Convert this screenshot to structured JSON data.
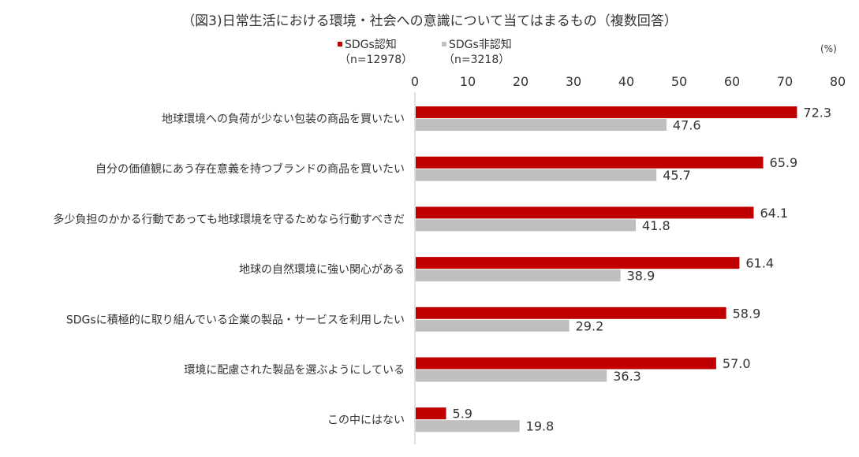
{
  "chart_data": {
    "type": "bar",
    "orientation": "horizontal",
    "title": "（図3)日常生活における環境・社会への意識について当てはまるもの（複数回答）",
    "unit": "(%)",
    "xlim": [
      0,
      80
    ],
    "ticks": [
      0,
      10,
      20,
      30,
      40,
      50,
      60,
      70,
      80
    ],
    "grid": false,
    "legend_position": "top",
    "categories": [
      "地球環境への負荷が少ない包装の商品を買いたい",
      "自分の価値観にあう存在意義を持つブランドの商品を買いたい",
      "多少負担のかかる行動であっても地球環境を守るためなら行動すべきだ",
      "地球の自然環境に強い関心がある",
      "SDGsに積極的に取り組んでいる企業の製品・サービスを利用したい",
      "環境に配慮された製品を選ぶようにしている",
      "この中にはない"
    ],
    "series": [
      {
        "name": "SDGs認知",
        "sample": "（n=12978）",
        "color": "#c00000",
        "values": [
          72.3,
          65.9,
          64.1,
          61.4,
          58.9,
          57.0,
          5.9
        ],
        "labels": [
          "72.3",
          "65.9",
          "64.1",
          "61.4",
          "58.9",
          "57.0",
          "5.9"
        ]
      },
      {
        "name": "SDGs非認知",
        "sample": "（n=3218）",
        "color": "#bfbfbf",
        "values": [
          47.6,
          45.7,
          41.8,
          38.9,
          29.2,
          36.3,
          19.8
        ],
        "labels": [
          "47.6",
          "45.7",
          "41.8",
          "38.9",
          "29.2",
          "36.3",
          "19.8"
        ]
      }
    ]
  }
}
